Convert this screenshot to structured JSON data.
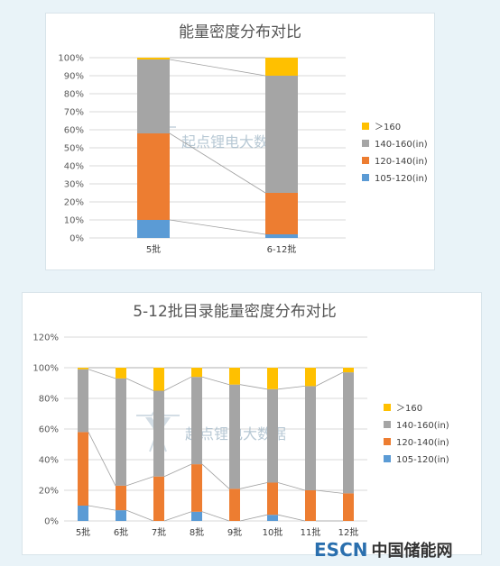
{
  "watermark": {
    "text": "起点锂电大数据"
  },
  "brand": {
    "en": "ESCN",
    "cn": "中国储能网"
  },
  "colors": {
    "105-120": "#5b9bd5",
    "120-140": "#ed7d31",
    "140-160": "#a5a5a5",
    "gt160": "#ffc000"
  },
  "chart_data": [
    {
      "type": "bar",
      "stacked": true,
      "title": "能量密度分布对比",
      "categories": [
        "5批",
        "6-12批"
      ],
      "series": [
        {
          "name": "105-120(in)",
          "values": [
            10,
            2
          ]
        },
        {
          "name": "120-140(in)",
          "values": [
            48,
            23
          ]
        },
        {
          "name": "140-160(in)",
          "values": [
            41,
            65
          ]
        },
        {
          "name": "＞160",
          "values": [
            1,
            10
          ]
        }
      ],
      "ylim": [
        0,
        100
      ],
      "yticks": [
        "0%",
        "10%",
        "20%",
        "30%",
        "40%",
        "50%",
        "60%",
        "70%",
        "80%",
        "90%",
        "100%"
      ],
      "series_lines": true,
      "grid": true,
      "legend": "right"
    },
    {
      "type": "bar",
      "stacked": true,
      "title": "5-12批目录能量密度分布对比",
      "categories": [
        "5批",
        "6批",
        "7批",
        "8批",
        "9批",
        "10批",
        "11批",
        "12批"
      ],
      "series": [
        {
          "name": "105-120(in)",
          "values": [
            10,
            7,
            0,
            6,
            0,
            4,
            0,
            0
          ]
        },
        {
          "name": "120-140(in)",
          "values": [
            48,
            16,
            29,
            31,
            21,
            21,
            20,
            18
          ]
        },
        {
          "name": "140-160(in)",
          "values": [
            41,
            70,
            56,
            57,
            68,
            61,
            68,
            79
          ]
        },
        {
          "name": "＞160",
          "values": [
            1,
            7,
            15,
            6,
            11,
            14,
            12,
            3
          ]
        }
      ],
      "ylim": [
        0,
        120
      ],
      "yticks": [
        "0%",
        "20%",
        "40%",
        "60%",
        "80%",
        "100%",
        "120%"
      ],
      "series_lines": true,
      "grid": true,
      "legend": "right"
    }
  ]
}
